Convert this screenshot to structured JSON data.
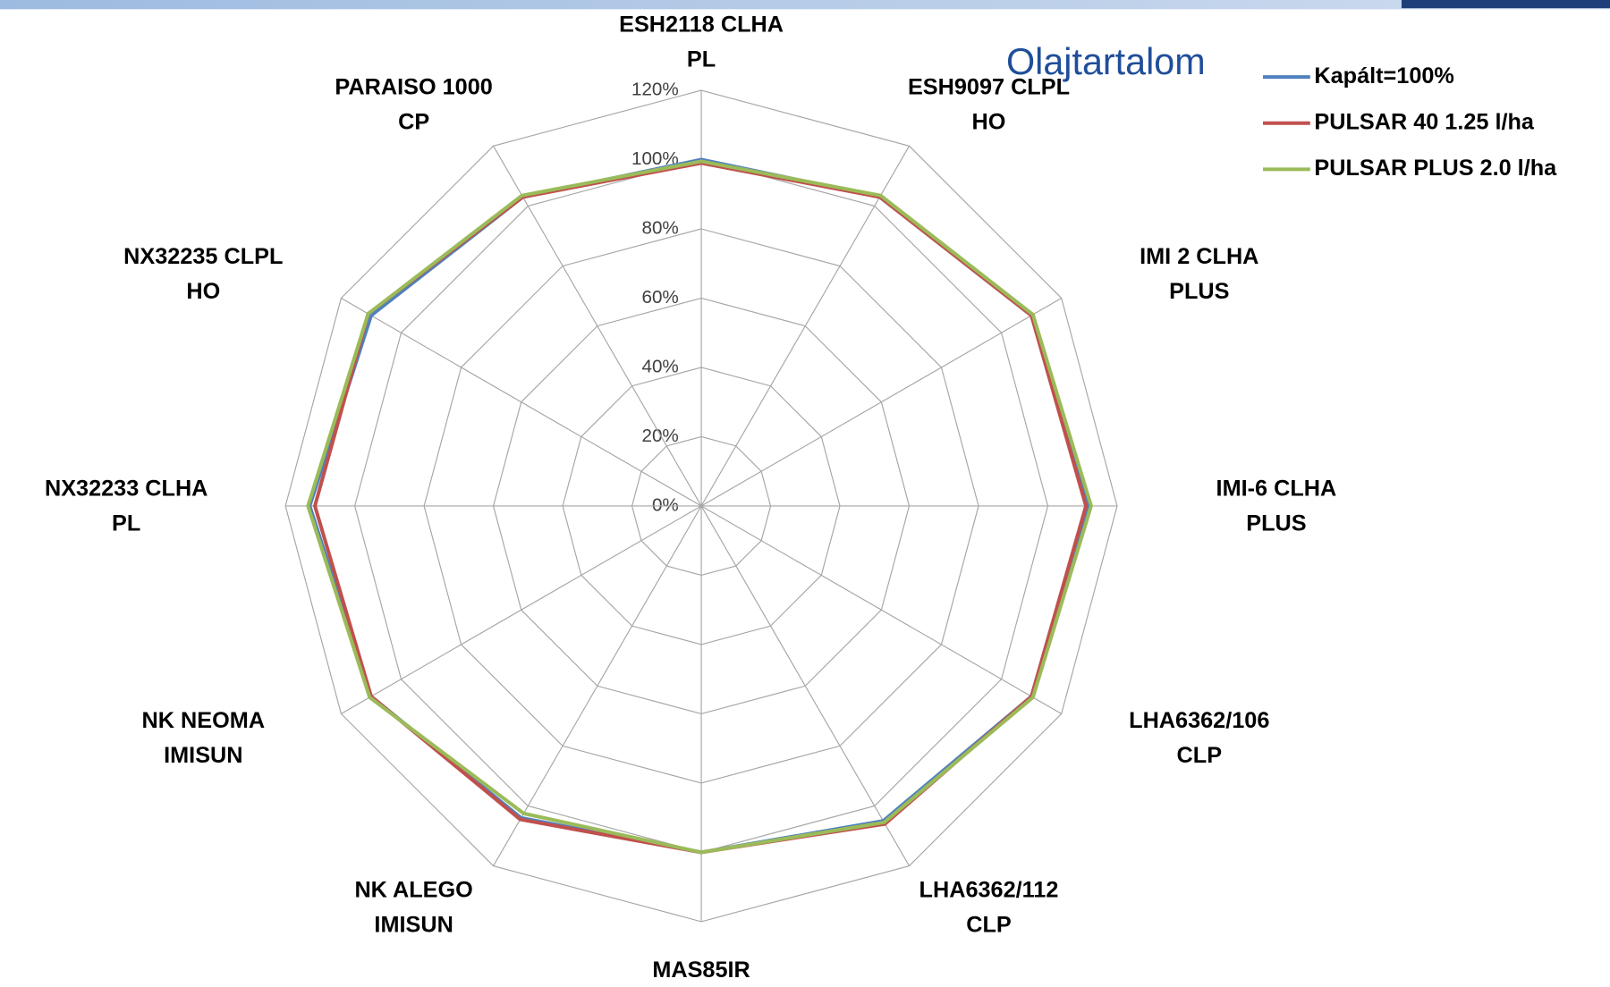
{
  "chart_data": {
    "type": "radar",
    "title": "Olajtartalom",
    "categories": [
      "ESH2118 CLHA PL",
      "ESH9097 CLPL HO",
      "IMI 2 CLHA PLUS",
      "IMI-6 CLHA PLUS",
      "LHA6362/106 CLP",
      "LHA6362/112 CLP",
      "MAS85IR",
      "NK ALEGO IMISUN",
      "NK NEOMA IMISUN",
      "NX32233 CLHA PL",
      "NX32235 CLPL HO",
      "PARAISO 1000 CP"
    ],
    "series": [
      {
        "name": "Kapált=100%",
        "color": "#4f81bd",
        "values": [
          100,
          103,
          110,
          112,
          110,
          105,
          100,
          104,
          110,
          113,
          110,
          103
        ]
      },
      {
        "name": "PULSAR 40 1.25 l/ha",
        "color": "#c0504d",
        "values": [
          99,
          103,
          110,
          111,
          110,
          106,
          100,
          104.5,
          110,
          111.5,
          111,
          103
        ]
      },
      {
        "name": "PULSAR PLUS 2.0 l/ha",
        "color": "#9bbb59",
        "values": [
          99.5,
          103.5,
          110.5,
          112.5,
          110.5,
          105.5,
          100,
          102.5,
          110.5,
          113.5,
          111,
          103.5
        ]
      }
    ],
    "ylim": [
      0,
      120
    ],
    "yticks": [
      {
        "value": 0,
        "label": "0%"
      },
      {
        "value": 20,
        "label": "20%"
      },
      {
        "value": 40,
        "label": "40%"
      },
      {
        "value": 60,
        "label": "60%"
      },
      {
        "value": 80,
        "label": "80%"
      },
      {
        "value": 100,
        "label": "100%"
      },
      {
        "value": 120,
        "label": "120%"
      }
    ],
    "grid": true,
    "legend": "top-right"
  }
}
